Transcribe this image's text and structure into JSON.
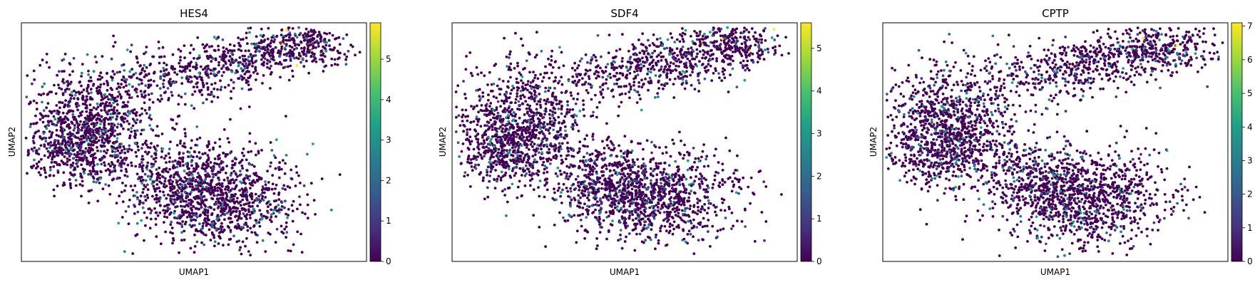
{
  "chart_data": [
    {
      "type": "scatter",
      "title": "HES4",
      "xlabel": "UMAP1",
      "ylabel": "UMAP2",
      "colormap": "viridis",
      "color_range": [
        0,
        5.9
      ],
      "colorbar_ticks": [
        "0",
        "1",
        "2",
        "3",
        "4",
        "5"
      ],
      "colorbar_tick_values": [
        0,
        1,
        2,
        3,
        4,
        5
      ]
    },
    {
      "type": "scatter",
      "title": "SDF4",
      "xlabel": "UMAP1",
      "ylabel": "UMAP2",
      "colormap": "viridis",
      "color_range": [
        0,
        5.6
      ],
      "colorbar_ticks": [
        "0",
        "1",
        "2",
        "3",
        "4",
        "5"
      ],
      "colorbar_tick_values": [
        0,
        1,
        2,
        3,
        4,
        5
      ]
    },
    {
      "type": "scatter",
      "title": "CPTP",
      "xlabel": "UMAP1",
      "ylabel": "UMAP2",
      "colormap": "viridis",
      "color_range": [
        0,
        7.1
      ],
      "colorbar_ticks": [
        "0",
        "1",
        "2",
        "3",
        "4",
        "5",
        "6",
        "7"
      ],
      "colorbar_tick_values": [
        0,
        1,
        2,
        3,
        4,
        5,
        6,
        7
      ]
    }
  ],
  "colors": {
    "viridis": [
      "#440154",
      "#46327e",
      "#365c8d",
      "#277f8e",
      "#1fa187",
      "#4ac16d",
      "#a0da39",
      "#fde725"
    ]
  }
}
